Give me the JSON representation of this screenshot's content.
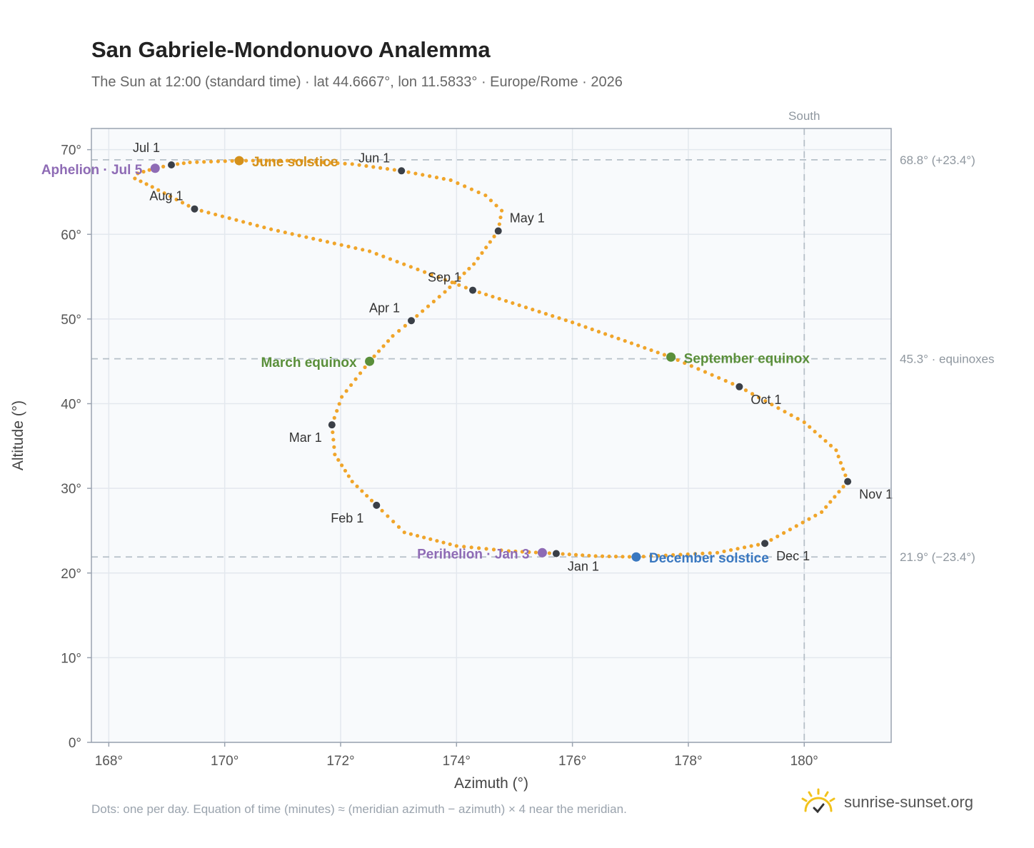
{
  "header": {
    "title": "San Gabriele-Mondonuovo Analemma",
    "subtitle": "The Sun at 12:00 (standard time) · lat 44.6667°, lon 11.5833° · Europe/Rome · 2026"
  },
  "footer": {
    "note": "Dots: one per day. Equation of time (minutes) ≈ (meridian azimuth − azimuth) × 4 near the meridian.",
    "brand": "sunrise-sunset.org"
  },
  "chart_data": {
    "type": "scatter",
    "title": "San Gabriele-Mondonuovo Analemma",
    "xlabel": "Azimuth (°)",
    "ylabel": "Altitude (°)",
    "xlim": [
      167.7,
      181.5
    ],
    "ylim": [
      0,
      72.5
    ],
    "xticks": [
      168,
      170,
      172,
      174,
      176,
      178,
      180
    ],
    "yticks": [
      0,
      10,
      20,
      30,
      40,
      50,
      60,
      70
    ],
    "xtick_labels": [
      "168°",
      "170°",
      "172°",
      "174°",
      "176°",
      "178°",
      "180°"
    ],
    "ytick_labels": [
      "0°",
      "10°",
      "20°",
      "30°",
      "40°",
      "50°",
      "60°",
      "70°"
    ],
    "grid": true,
    "series_color": "#f0a52a",
    "meridian": {
      "azimuth": 180,
      "label": "South"
    },
    "reference_lines": [
      {
        "altitude": 68.8,
        "label": "68.8° (+23.4°)"
      },
      {
        "altitude": 45.3,
        "label": "45.3° · equinoxes"
      },
      {
        "altitude": 21.9,
        "label": "21.9° (−23.4°)"
      }
    ],
    "analemma_path": [
      [
        175.72,
        22.3
      ],
      [
        174.9,
        22.6
      ],
      [
        174.0,
        23.2
      ],
      [
        173.1,
        24.8
      ],
      [
        172.62,
        28.0
      ],
      [
        172.2,
        30.8
      ],
      [
        171.9,
        34.0
      ],
      [
        171.85,
        37.5
      ],
      [
        172.02,
        40.8
      ],
      [
        172.5,
        45.0
      ],
      [
        172.9,
        48.0
      ],
      [
        173.22,
        49.8
      ],
      [
        173.8,
        53.2
      ],
      [
        174.3,
        56.5
      ],
      [
        174.72,
        60.4
      ],
      [
        174.78,
        62.8
      ],
      [
        174.5,
        64.6
      ],
      [
        173.9,
        66.4
      ],
      [
        173.05,
        67.5
      ],
      [
        172.2,
        68.3
      ],
      [
        171.2,
        68.7
      ],
      [
        170.25,
        68.7
      ],
      [
        169.4,
        68.5
      ],
      [
        169.08,
        68.2
      ],
      [
        168.8,
        67.8
      ],
      [
        168.5,
        67.2
      ],
      [
        168.45,
        66.6
      ],
      [
        168.75,
        65.6
      ],
      [
        169.48,
        63.0
      ],
      [
        170.8,
        60.6
      ],
      [
        172.5,
        58.0
      ],
      [
        174.28,
        53.4
      ],
      [
        176.0,
        49.6
      ],
      [
        177.7,
        45.5
      ],
      [
        178.88,
        42.0
      ],
      [
        180.0,
        37.8
      ],
      [
        180.55,
        34.5
      ],
      [
        180.75,
        30.8
      ],
      [
        180.3,
        27.2
      ],
      [
        179.32,
        23.5
      ],
      [
        178.5,
        22.4
      ],
      [
        177.1,
        21.9
      ],
      [
        176.4,
        22.0
      ],
      [
        175.72,
        22.3
      ]
    ],
    "month_markers": [
      {
        "label": "Jan 1",
        "azimuth": 175.72,
        "altitude": 22.3
      },
      {
        "label": "Feb 1",
        "azimuth": 172.62,
        "altitude": 28.0
      },
      {
        "label": "Mar 1",
        "azimuth": 171.85,
        "altitude": 37.5
      },
      {
        "label": "Apr 1",
        "azimuth": 173.22,
        "altitude": 49.8
      },
      {
        "label": "May 1",
        "azimuth": 174.72,
        "altitude": 60.4
      },
      {
        "label": "Jun 1",
        "azimuth": 173.05,
        "altitude": 67.5
      },
      {
        "label": "Jul 1",
        "azimuth": 169.08,
        "altitude": 68.2
      },
      {
        "label": "Aug 1",
        "azimuth": 169.48,
        "altitude": 63.0
      },
      {
        "label": "Sep 1",
        "azimuth": 174.28,
        "altitude": 53.4
      },
      {
        "label": "Oct 1",
        "azimuth": 178.88,
        "altitude": 42.0
      },
      {
        "label": "Nov 1",
        "azimuth": 180.75,
        "altitude": 30.8
      },
      {
        "label": "Dec 1",
        "azimuth": 179.32,
        "altitude": 23.5
      }
    ],
    "events": [
      {
        "label": "June solstice",
        "azimuth": 170.25,
        "altitude": 68.7,
        "color": "#d4901a"
      },
      {
        "label": "Aphelion · Jul 5",
        "azimuth": 168.8,
        "altitude": 67.8,
        "color": "#8e6bb5"
      },
      {
        "label": "March equinox",
        "azimuth": 172.5,
        "altitude": 45.0,
        "color": "#5a8f3a"
      },
      {
        "label": "September equinox",
        "azimuth": 177.7,
        "altitude": 45.5,
        "color": "#5a8f3a"
      },
      {
        "label": "Perihelion · Jan 3",
        "azimuth": 175.48,
        "altitude": 22.4,
        "color": "#8e6bb5"
      },
      {
        "label": "December solstice",
        "azimuth": 177.1,
        "altitude": 21.9,
        "color": "#3a78c0"
      }
    ]
  }
}
